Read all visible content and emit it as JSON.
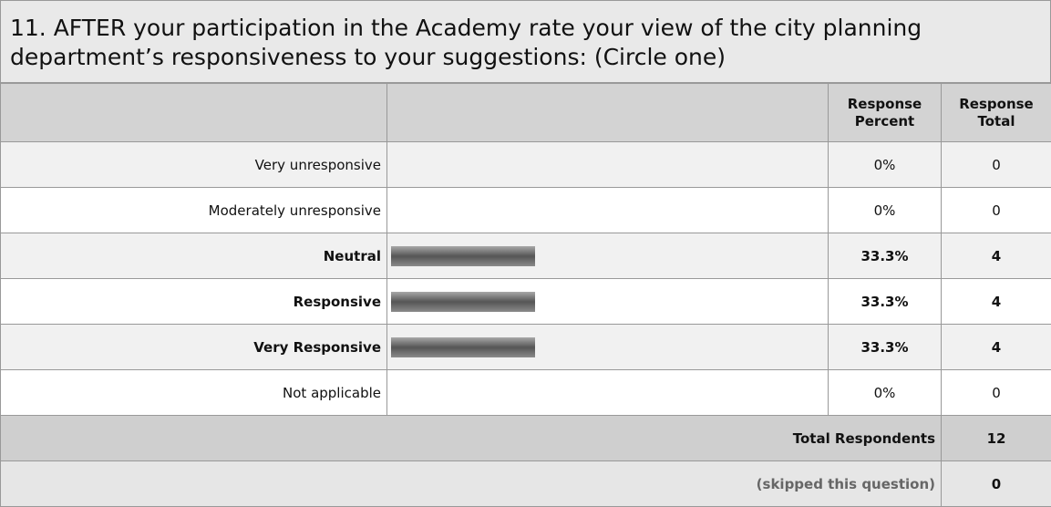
{
  "question": {
    "title": "11. AFTER your participation in the Academy rate your view of the city planning department’s responsiveness to your suggestions: (Circle one)"
  },
  "table": {
    "header": {
      "percent": "Response Percent",
      "total": "Response Total"
    },
    "rows": [
      {
        "label": "Very unresponsive",
        "percent": 0,
        "percent_label": "0%",
        "total": 0
      },
      {
        "label": "Moderately unresponsive",
        "percent": 0,
        "percent_label": "0%",
        "total": 0
      },
      {
        "label": "Neutral",
        "percent": 33.3,
        "percent_label": "33.3%",
        "total": 4
      },
      {
        "label": "Responsive",
        "percent": 33.3,
        "percent_label": "33.3%",
        "total": 4
      },
      {
        "label": "Very Responsive",
        "percent": 33.3,
        "percent_label": "33.3%",
        "total": 4
      },
      {
        "label": "Not applicable",
        "percent": 0,
        "percent_label": "0%",
        "total": 0
      }
    ],
    "footer": [
      {
        "label": "Total Respondents",
        "total": 12
      },
      {
        "label": "(skipped this question)",
        "total": 0
      }
    ]
  }
}
